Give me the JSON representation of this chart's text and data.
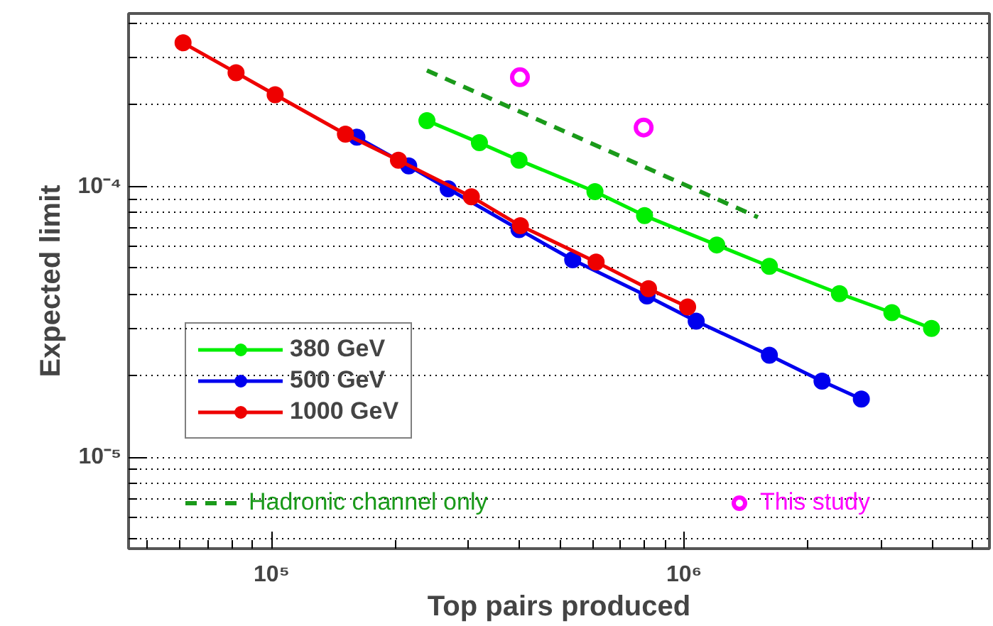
{
  "chart_data": {
    "type": "line",
    "xlabel": "Top pairs produced",
    "ylabel": "Expected limit",
    "log": "xy",
    "grid": "y",
    "legend": "bottom left",
    "marker": "circle",
    "xlim": [
      45000,
      5500000
    ],
    "ylim": [
      4.6e-06,
      0.000435
    ],
    "xticks": [
      {
        "value": 100000,
        "label": "10⁵"
      },
      {
        "value": 1000000,
        "label": "10⁶"
      }
    ],
    "yticks": [
      {
        "value": 1e-05,
        "label": "10⁻⁵"
      },
      {
        "value": 0.0001,
        "label": "10⁻⁴"
      }
    ],
    "series": [
      {
        "name": "380 GeV",
        "color": "#00ee00",
        "x": [
          238000,
          319000,
          398000,
          608000,
          802000,
          1200000,
          1610000,
          2380000,
          3190000,
          3980000
        ],
        "values": [
          0.000175,
          0.000145,
          0.000125,
          9.57e-05,
          7.8e-05,
          6.08e-05,
          5.07e-05,
          4.02e-05,
          3.42e-05,
          2.99e-05
        ]
      },
      {
        "name": "500 GeV",
        "color": "#0000ee",
        "x": [
          161000,
          215000,
          268000,
          398000,
          537000,
          813000,
          1070000,
          1610000,
          2160000,
          2690000
        ],
        "values": [
          0.000152,
          0.000119,
          9.8e-05,
          6.93e-05,
          5.36e-05,
          3.94e-05,
          3.18e-05,
          2.38e-05,
          1.91e-05,
          1.64e-05
        ]
      },
      {
        "name": "1000 GeV",
        "color": "#ee0000",
        "x": [
          61000,
          82000,
          102000,
          151000,
          203000,
          305000,
          401000,
          612000,
          820000,
          1020000
        ],
        "values": [
          0.000339,
          0.000263,
          0.000218,
          0.000156,
          0.000125,
          9.16e-05,
          7.16e-05,
          5.26e-05,
          4.19e-05,
          3.59e-05
        ]
      },
      {
        "name": "Hadronic channel only",
        "color": "#1a9a1a",
        "line_style": "dashed",
        "marker": "none",
        "x": [
          238000,
          1510000
        ],
        "values": [
          0.000268,
          7.7e-05
        ]
      },
      {
        "name": "This study",
        "type": "scatter",
        "color": "#ff00ff",
        "x": [
          400000,
          798000
        ],
        "values": [
          0.000253,
          0.000165
        ]
      }
    ]
  }
}
